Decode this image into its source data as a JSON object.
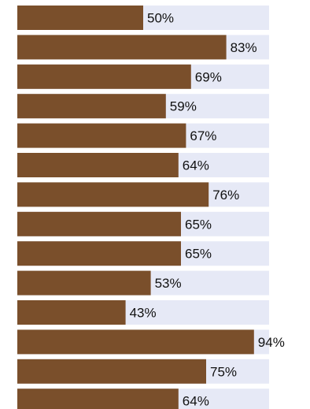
{
  "chart_data": {
    "type": "bar",
    "orientation": "horizontal",
    "values": [
      50,
      83,
      69,
      59,
      67,
      64,
      76,
      65,
      65,
      53,
      43,
      94,
      75,
      64
    ],
    "value_labels": [
      "50%",
      "83%",
      "69%",
      "59%",
      "67%",
      "64%",
      "76%",
      "65%",
      "65%",
      "53%",
      "43%",
      "94%",
      "75%",
      "64%"
    ],
    "xlim": [
      0,
      100
    ],
    "unit": "%",
    "grid": false,
    "legend": "none",
    "colors": {
      "bar": "#7a4f2b",
      "track": "#e6e9f6",
      "label": "#111111"
    }
  }
}
